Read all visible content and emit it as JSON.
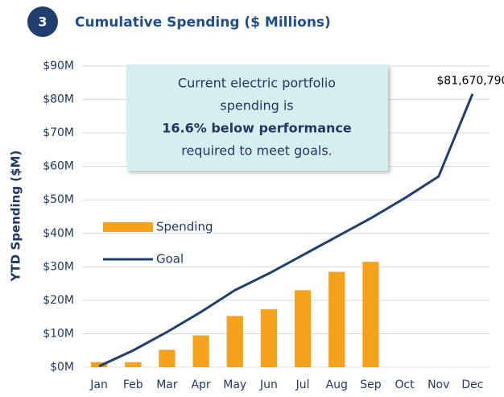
{
  "chart_data": {
    "type": "bar-line",
    "badge": "3",
    "title": "Cumulative Spending ($ Millions)",
    "ylabel": "YTD Spending ($M)",
    "annotation": [
      "Current electric portfolio",
      "spending is",
      "16.6% below performance",
      "required to meet goals."
    ],
    "categories": [
      "Jan",
      "Feb",
      "Mar",
      "Apr",
      "May",
      "Jun",
      "Jul",
      "Aug",
      "Sep",
      "Oct",
      "Nov",
      "Dec"
    ],
    "series": [
      {
        "name": "Spending",
        "type": "bar",
        "color": "#f5a21b",
        "values": [
          1.5,
          1.5,
          5.2,
          9.5,
          15.3,
          17.3,
          23,
          28.5,
          31.5,
          null,
          null,
          null
        ]
      },
      {
        "name": "Goal",
        "type": "line",
        "color": "#1f3f6e",
        "values": [
          0.3,
          5,
          10.5,
          16.5,
          23,
          28,
          33.5,
          39,
          44.5,
          50.5,
          57,
          81.67079
        ],
        "value_labels": [
          null,
          null,
          null,
          null,
          null,
          null,
          null,
          null,
          null,
          null,
          null,
          "$81,670,790"
        ]
      }
    ],
    "ylim": [
      0,
      90
    ],
    "yticks": [
      {
        "value": 0,
        "label": "$0M"
      },
      {
        "value": 10,
        "label": "$10M"
      },
      {
        "value": 20,
        "label": "$20M"
      },
      {
        "value": 30,
        "label": "$30M"
      },
      {
        "value": 40,
        "label": "$40M"
      },
      {
        "value": 50,
        "label": "$50M"
      },
      {
        "value": 60,
        "label": "$60M"
      },
      {
        "value": 70,
        "label": "$70M"
      },
      {
        "value": 80,
        "label": "$80M"
      },
      {
        "value": 90,
        "label": "$90M"
      }
    ],
    "grid": true,
    "legend": "left"
  }
}
